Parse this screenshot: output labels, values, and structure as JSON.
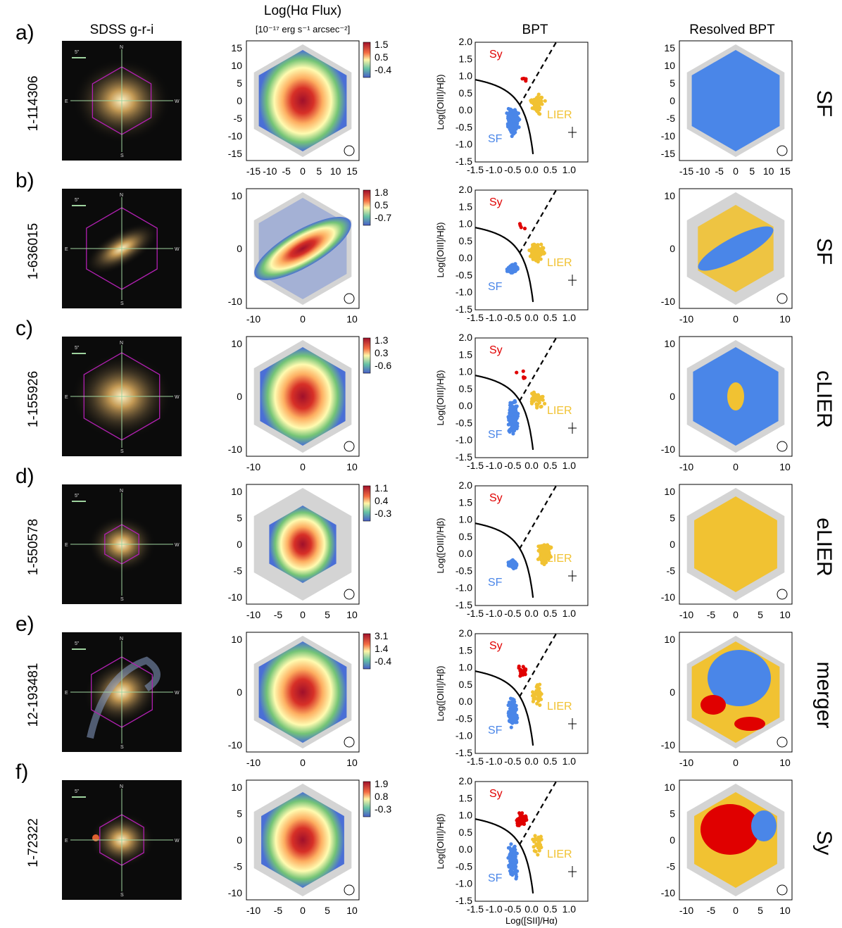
{
  "columns": {
    "sdss": "SDSS g-r-i",
    "flux_title": "Log(Hα Flux)",
    "flux_unit": "[10⁻¹⁷ erg s⁻¹ arcsec⁻²]",
    "bpt": "BPT",
    "resolved": "Resolved BPT"
  },
  "bpt_axes": {
    "ylabel": "Log([OIII]/Hβ)",
    "xlabel": "Log([SII]/Hα)",
    "xticks": [
      "-1.5",
      "-1.0",
      "-0.5",
      "0.0",
      "0.5",
      "1.0"
    ],
    "yticks": [
      "2.0",
      "1.5",
      "1.0",
      "0.5",
      "0.0",
      "-0.5",
      "-1.0",
      "-1.5"
    ],
    "region_sy": "Sy",
    "region_sf": "SF",
    "region_lier": "LIER"
  },
  "compass": {
    "n": "N",
    "s": "S",
    "e": "E",
    "w": "W",
    "scale": "5\""
  },
  "colors": {
    "sf": "#4a86e8",
    "lier": "#f1c232",
    "sy": "#e00000",
    "grey": "#d4d4d4"
  },
  "rows": [
    {
      "panel": "a)",
      "id": "1-114306",
      "cls": "SF",
      "cbar": [
        "1.5",
        "0.5",
        "-0.4"
      ],
      "ticks": [
        "15",
        "10",
        "5",
        "0",
        "-5",
        "-10",
        "-15"
      ],
      "xticks": [
        "-15",
        "-10",
        "-5",
        "0",
        "5",
        "10",
        "15"
      ]
    },
    {
      "panel": "b)",
      "id": "1-636015",
      "cls": "SF",
      "cbar": [
        "1.8",
        "0.5",
        "-0.7"
      ],
      "ticks": [
        "10",
        "0",
        "-10"
      ],
      "xticks": [
        "-10",
        "0",
        "10"
      ]
    },
    {
      "panel": "c)",
      "id": "1-155926",
      "cls": "cLIER",
      "cbar": [
        "1.3",
        "0.3",
        "-0.6"
      ],
      "ticks": [
        "10",
        "0",
        "-10"
      ],
      "xticks": [
        "-10",
        "0",
        "10"
      ]
    },
    {
      "panel": "d)",
      "id": "1-550578",
      "cls": "eLIER",
      "cbar": [
        "1.1",
        "0.4",
        "-0.3"
      ],
      "ticks": [
        "10",
        "5",
        "0",
        "-5",
        "-10"
      ],
      "xticks": [
        "-10",
        "-5",
        "0",
        "5",
        "10"
      ]
    },
    {
      "panel": "e)",
      "id": "12-193481",
      "cls": "merger",
      "cbar": [
        "3.1",
        "1.4",
        "-0.4"
      ],
      "ticks": [
        "10",
        "0",
        "-10"
      ],
      "xticks": [
        "-10",
        "0",
        "10"
      ]
    },
    {
      "panel": "f)",
      "id": "1-72322",
      "cls": "Sy",
      "cbar": [
        "1.9",
        "0.8",
        "-0.3"
      ],
      "ticks": [
        "10",
        "5",
        "0",
        "-5",
        "-10"
      ],
      "xticks": [
        "-10",
        "-5",
        "0",
        "5",
        "10"
      ]
    }
  ]
}
